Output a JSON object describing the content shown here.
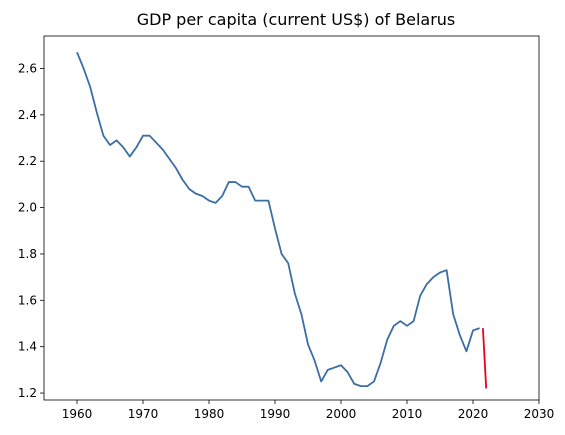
{
  "chart_data": {
    "type": "line",
    "title": "GDP per capita (current US$) of Belarus",
    "xlabel": "",
    "ylabel": "",
    "xlim": [
      1955,
      2030
    ],
    "ylim": [
      1.17,
      2.74
    ],
    "x_ticks": [
      1960,
      1970,
      1980,
      1990,
      2000,
      2010,
      2020,
      2030
    ],
    "y_ticks": [
      1.2,
      1.4,
      1.6,
      1.8,
      2.0,
      2.2,
      2.4,
      2.6
    ],
    "y_tick_labels": [
      "1.2",
      "1.4",
      "1.6",
      "1.8",
      "2.0",
      "2.2",
      "2.4",
      "2.6"
    ],
    "grid": false,
    "series": [
      {
        "color": "#3a6ea5",
        "points": [
          [
            1960,
            2.67
          ],
          [
            1961,
            2.6
          ],
          [
            1962,
            2.52
          ],
          [
            1963,
            2.41
          ],
          [
            1964,
            2.31
          ],
          [
            1965,
            2.27
          ],
          [
            1966,
            2.29
          ],
          [
            1967,
            2.26
          ],
          [
            1968,
            2.22
          ],
          [
            1969,
            2.26
          ],
          [
            1970,
            2.31
          ],
          [
            1971,
            2.31
          ],
          [
            1972,
            2.28
          ],
          [
            1973,
            2.25
          ],
          [
            1974,
            2.21
          ],
          [
            1975,
            2.17
          ],
          [
            1976,
            2.12
          ],
          [
            1977,
            2.08
          ],
          [
            1978,
            2.06
          ],
          [
            1979,
            2.05
          ],
          [
            1980,
            2.03
          ],
          [
            1981,
            2.02
          ],
          [
            1982,
            2.05
          ],
          [
            1983,
            2.11
          ],
          [
            1984,
            2.11
          ],
          [
            1985,
            2.09
          ],
          [
            1986,
            2.09
          ],
          [
            1987,
            2.03
          ],
          [
            1988,
            2.03
          ],
          [
            1989,
            2.03
          ],
          [
            1990,
            1.91
          ],
          [
            1991,
            1.8
          ],
          [
            1992,
            1.76
          ],
          [
            1993,
            1.63
          ],
          [
            1994,
            1.54
          ],
          [
            1995,
            1.41
          ],
          [
            1996,
            1.34
          ],
          [
            1997,
            1.25
          ],
          [
            1998,
            1.3
          ],
          [
            1999,
            1.31
          ],
          [
            2000,
            1.32
          ],
          [
            2001,
            1.29
          ],
          [
            2002,
            1.24
          ],
          [
            2003,
            1.23
          ],
          [
            2004,
            1.23
          ],
          [
            2005,
            1.25
          ],
          [
            2006,
            1.33
          ],
          [
            2007,
            1.43
          ],
          [
            2008,
            1.49
          ],
          [
            2009,
            1.51
          ],
          [
            2010,
            1.49
          ],
          [
            2011,
            1.51
          ],
          [
            2012,
            1.62
          ],
          [
            2013,
            1.67
          ],
          [
            2014,
            1.7
          ],
          [
            2015,
            1.72
          ],
          [
            2016,
            1.73
          ],
          [
            2017,
            1.54
          ],
          [
            2018,
            1.45
          ],
          [
            2019,
            1.38
          ],
          [
            2020,
            1.47
          ],
          [
            2021,
            1.48
          ]
        ]
      },
      {
        "color": "#e8001c",
        "points": [
          [
            2021.5,
            1.48
          ],
          [
            2022,
            1.22
          ]
        ]
      }
    ]
  }
}
